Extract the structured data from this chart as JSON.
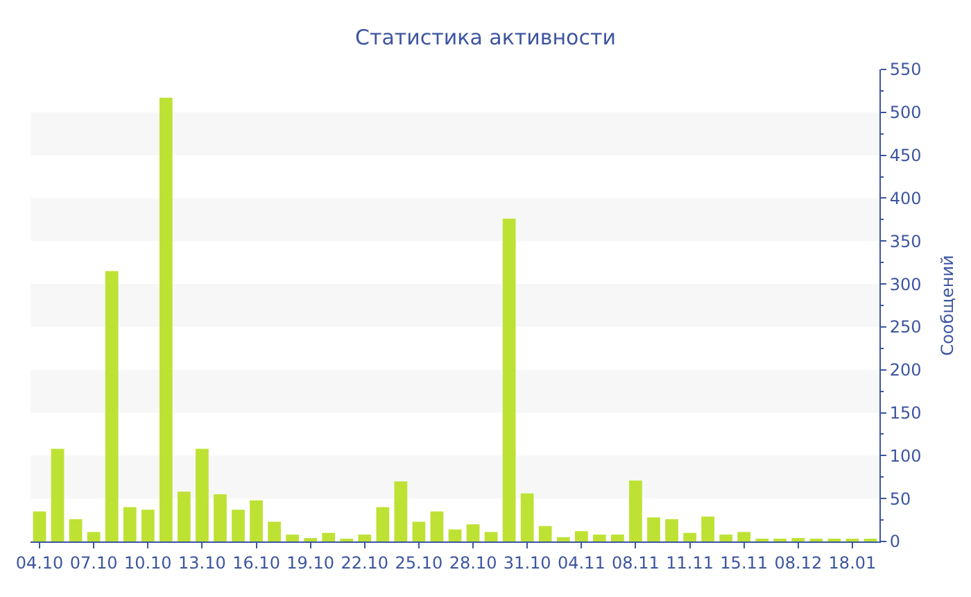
{
  "chart_data": {
    "type": "bar",
    "title": "Статистика активности",
    "ylabel": "Сообщений",
    "categories": [
      "04.10",
      null,
      null,
      "07.10",
      null,
      null,
      "10.10",
      null,
      null,
      "13.10",
      null,
      null,
      "16.10",
      null,
      null,
      "19.10",
      null,
      null,
      "22.10",
      null,
      null,
      "25.10",
      null,
      null,
      "28.10",
      null,
      null,
      "31.10",
      null,
      null,
      "04.11",
      null,
      null,
      "08.11",
      null,
      null,
      "11.11",
      null,
      null,
      "15.11",
      null,
      null,
      "08.12",
      null,
      null,
      "18.01",
      null
    ],
    "values": [
      35,
      108,
      26,
      11,
      315,
      40,
      37,
      517,
      58,
      108,
      55,
      37,
      48,
      23,
      8,
      4,
      10,
      3,
      8,
      40,
      70,
      23,
      35,
      14,
      20,
      11,
      376,
      56,
      18,
      5,
      12,
      8,
      8,
      71,
      28,
      26,
      10,
      29,
      8,
      11,
      3,
      3,
      4,
      3,
      3,
      3,
      3
    ],
    "color": "#bde234",
    "ylim": [
      0,
      550
    ],
    "yticks": [
      0,
      50,
      100,
      150,
      200,
      250,
      300,
      350,
      400,
      450,
      500,
      550
    ],
    "bands": [
      {
        "axis": "y",
        "from": 50,
        "to": 100,
        "color": "#f7f7f7"
      },
      {
        "axis": "y",
        "from": 150,
        "to": 200,
        "color": "#f7f7f7"
      },
      {
        "axis": "y",
        "from": 250,
        "to": 300,
        "color": "#f7f7f7"
      },
      {
        "axis": "y",
        "from": 350,
        "to": 400,
        "color": "#f7f7f7"
      },
      {
        "axis": "y",
        "from": 450,
        "to": 500,
        "color": "#f7f7f7"
      }
    ],
    "grid": false,
    "legend": false
  }
}
